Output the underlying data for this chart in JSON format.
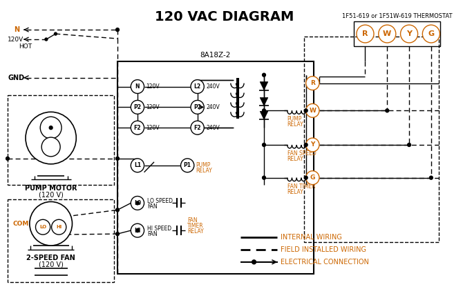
{
  "title": "120 VAC DIAGRAM",
  "title_fontsize": 14,
  "bg_color": "#ffffff",
  "line_color": "#000000",
  "orange_color": "#cc6600",
  "thermostat_label": "1F51-619 or 1F51W-619 THERMOSTAT",
  "box_label": "8A18Z-2",
  "legend_items": [
    {
      "label": "INTERNAL WIRING"
    },
    {
      "label": "FIELD INSTALLED WIRING"
    },
    {
      "label": "ELECTRICAL CONNECTION"
    }
  ]
}
